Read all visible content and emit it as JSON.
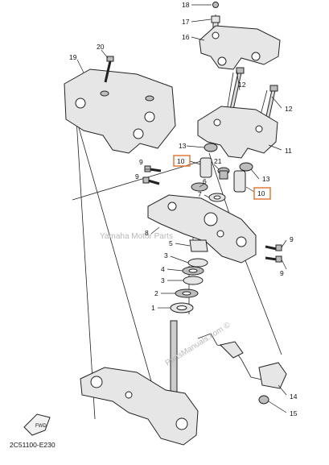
{
  "diagram": {
    "code": "2C51100-E230",
    "watermark": "Yamaha Motor Parts",
    "watermark_small": "PartsManuals.com ©",
    "fwd_label": "FWD",
    "callouts": {
      "c18": "18",
      "c17": "17",
      "c16": "16",
      "c19": "19",
      "c20": "20",
      "c12a": "12",
      "c12b": "12",
      "c13a": "13",
      "c13b": "13",
      "c11": "11",
      "c10a": "10",
      "c10b": "10",
      "c21": "21",
      "c9a": "9",
      "c9b": "9",
      "c9c": "9",
      "c9d": "9",
      "c6": "6",
      "c7": "7",
      "c8": "8",
      "c5": "5",
      "c3a": "3",
      "c4": "4",
      "c3b": "3",
      "c2": "2",
      "c1": "1",
      "c14": "14",
      "c15": "15"
    },
    "highlight_color": "#e07a3a"
  }
}
